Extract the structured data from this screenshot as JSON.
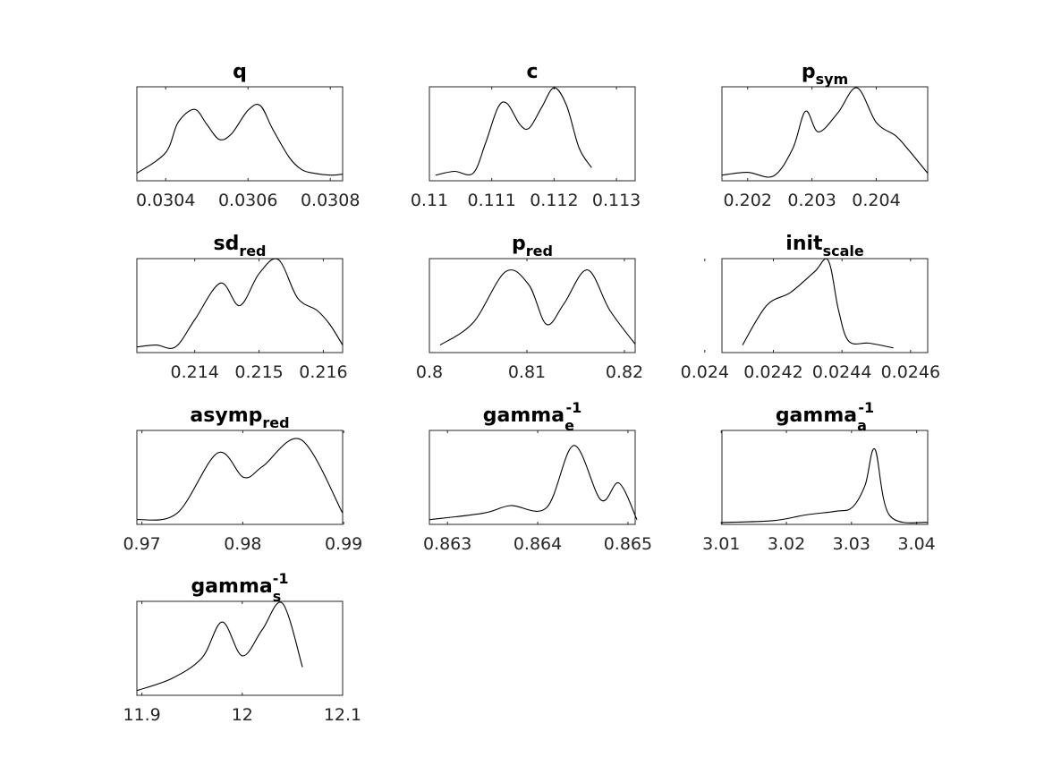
{
  "chart_data": [
    {
      "type": "line",
      "title": {
        "base": "q",
        "sub": "",
        "sup": ""
      },
      "xlim": [
        0.03033,
        0.03083
      ],
      "ylim": [
        0,
        1
      ],
      "xticks": [
        0.0304,
        0.0306,
        0.0308
      ],
      "xtick_labels": [
        "0.0304",
        "0.0306",
        "0.0308"
      ],
      "grid": false,
      "x": [
        0.03033,
        0.0304,
        0.03043,
        0.03047,
        0.0305,
        0.03053,
        0.03056,
        0.0306,
        0.03063,
        0.03066,
        0.0307,
        0.03073,
        0.03076,
        0.0308,
        0.03083
      ],
      "y": [
        0.08,
        0.3,
        0.62,
        0.76,
        0.6,
        0.44,
        0.5,
        0.75,
        0.8,
        0.55,
        0.25,
        0.12,
        0.08,
        0.06,
        0.07
      ]
    },
    {
      "type": "line",
      "title": {
        "base": "c",
        "sub": "",
        "sup": ""
      },
      "xlim": [
        0.11,
        0.1133
      ],
      "ylim": [
        0,
        1
      ],
      "xticks": [
        0.11,
        0.111,
        0.112,
        0.113
      ],
      "xtick_labels": [
        "0.11",
        "0.111",
        "0.112",
        "0.113"
      ],
      "grid": false,
      "x": [
        0.1101,
        0.1104,
        0.1107,
        0.1109,
        0.1111,
        0.11125,
        0.11145,
        0.1116,
        0.1118,
        0.112,
        0.1122,
        0.1124,
        0.1126
      ],
      "y": [
        0.06,
        0.1,
        0.08,
        0.4,
        0.78,
        0.82,
        0.6,
        0.56,
        0.78,
        0.99,
        0.8,
        0.35,
        0.14
      ]
    },
    {
      "type": "line",
      "title": {
        "base": "p",
        "sub": "sym",
        "sup": ""
      },
      "xlim": [
        0.2016,
        0.2048
      ],
      "ylim": [
        0,
        1
      ],
      "xticks": [
        0.202,
        0.203,
        0.204
      ],
      "xtick_labels": [
        "0.202",
        "0.203",
        "0.204"
      ],
      "grid": false,
      "x": [
        0.2016,
        0.202,
        0.2024,
        0.2027,
        0.2029,
        0.2031,
        0.2034,
        0.2037,
        0.204,
        0.2043,
        0.2045,
        0.2048
      ],
      "y": [
        0.06,
        0.09,
        0.05,
        0.34,
        0.74,
        0.52,
        0.72,
        0.99,
        0.62,
        0.48,
        0.33,
        0.08
      ]
    },
    {
      "type": "line",
      "title": {
        "base": "sd",
        "sub": "red",
        "sup": ""
      },
      "xlim": [
        0.2131,
        0.2163
      ],
      "ylim": [
        0,
        1
      ],
      "xticks": [
        0.214,
        0.215,
        0.216
      ],
      "xtick_labels": [
        "0.214",
        "0.215",
        "0.216"
      ],
      "grid": false,
      "x": [
        0.2131,
        0.2134,
        0.2137,
        0.214,
        0.2144,
        0.2147,
        0.215,
        0.2153,
        0.2156,
        0.2159,
        0.2161,
        0.2163
      ],
      "y": [
        0.06,
        0.08,
        0.06,
        0.35,
        0.74,
        0.5,
        0.84,
        0.99,
        0.58,
        0.45,
        0.3,
        0.08
      ]
    },
    {
      "type": "line",
      "title": {
        "base": "p",
        "sub": "red",
        "sup": ""
      },
      "xlim": [
        0.8,
        0.8211
      ],
      "ylim": [
        0,
        1
      ],
      "xticks": [
        0.8,
        0.81,
        0.82
      ],
      "xtick_labels": [
        "0.8",
        "0.81",
        "0.82"
      ],
      "grid": false,
      "x": [
        0.8011,
        0.8045,
        0.8078,
        0.8102,
        0.812,
        0.8138,
        0.8162,
        0.8185,
        0.8211
      ],
      "y": [
        0.08,
        0.32,
        0.86,
        0.72,
        0.3,
        0.52,
        0.88,
        0.45,
        0.09
      ]
    },
    {
      "type": "line",
      "title": {
        "base": "init",
        "sub": "scale",
        "sup": ""
      },
      "xlim": [
        0.02405,
        0.02465
      ],
      "ylim": [
        0,
        1
      ],
      "xticks": [
        0.024,
        0.0242,
        0.0244,
        0.0246
      ],
      "xtick_labels": [
        "0.024",
        "0.0242",
        "0.0244",
        "0.0246"
      ],
      "grid": false,
      "x": [
        0.02411,
        0.02418,
        0.02425,
        0.02432,
        0.02436,
        0.02439,
        0.02442,
        0.02448,
        0.02455
      ],
      "y": [
        0.08,
        0.5,
        0.64,
        0.86,
        0.98,
        0.45,
        0.12,
        0.1,
        0.05
      ]
    },
    {
      "type": "line",
      "title": {
        "base": "asymp",
        "sub": "red",
        "sup": ""
      },
      "xlim": [
        0.9695,
        0.9899
      ],
      "ylim": [
        0,
        1
      ],
      "xticks": [
        0.97,
        0.98,
        0.99
      ],
      "xtick_labels": [
        "0.97",
        "0.98",
        "0.99"
      ],
      "grid": false,
      "x": [
        0.9695,
        0.9735,
        0.9775,
        0.9801,
        0.982,
        0.9858,
        0.9899
      ],
      "y": [
        0.05,
        0.12,
        0.76,
        0.5,
        0.62,
        0.9,
        0.12
      ]
    },
    {
      "type": "line",
      "title": {
        "base": "gamma",
        "sub": "e",
        "sup": "-1"
      },
      "xlim": [
        0.8628,
        0.86508
      ],
      "ylim": [
        0,
        1
      ],
      "xticks": [
        0.863,
        0.864,
        0.865
      ],
      "xtick_labels": [
        "0.863",
        "0.864",
        "0.865"
      ],
      "grid": false,
      "x": [
        0.8628,
        0.8634,
        0.8637,
        0.8641,
        0.8644,
        0.8647,
        0.8649,
        0.8651
      ],
      "y": [
        0.05,
        0.12,
        0.2,
        0.18,
        0.84,
        0.26,
        0.44,
        0.05
      ]
    },
    {
      "type": "line",
      "title": {
        "base": "gamma",
        "sub": "a",
        "sup": "-1"
      },
      "xlim": [
        3.0101,
        3.0417
      ],
      "ylim": [
        0,
        1
      ],
      "xticks": [
        3.01,
        3.02,
        3.03,
        3.04
      ],
      "xtick_labels": [
        "3.01",
        "3.02",
        "3.03",
        "3.04"
      ],
      "grid": false,
      "x": [
        3.0101,
        3.018,
        3.0229,
        3.0276,
        3.0301,
        3.0321,
        3.0336,
        3.0358,
        3.0417
      ],
      "y": [
        0.02,
        0.04,
        0.1,
        0.14,
        0.18,
        0.42,
        0.8,
        0.1,
        0.02
      ]
    },
    {
      "type": "line",
      "title": {
        "base": "gamma",
        "sub": "s",
        "sup": "-1"
      },
      "xlim": [
        11.895,
        12.1
      ],
      "ylim": [
        0,
        1
      ],
      "xticks": [
        11.9,
        12,
        12.1
      ],
      "xtick_labels": [
        "11.9",
        "12",
        "12.1"
      ],
      "grid": false,
      "x": [
        11.895,
        11.93,
        11.96,
        11.98,
        12.0,
        12.02,
        12.04,
        12.06
      ],
      "y": [
        0.05,
        0.18,
        0.4,
        0.78,
        0.42,
        0.7,
        0.98,
        0.3
      ]
    }
  ]
}
